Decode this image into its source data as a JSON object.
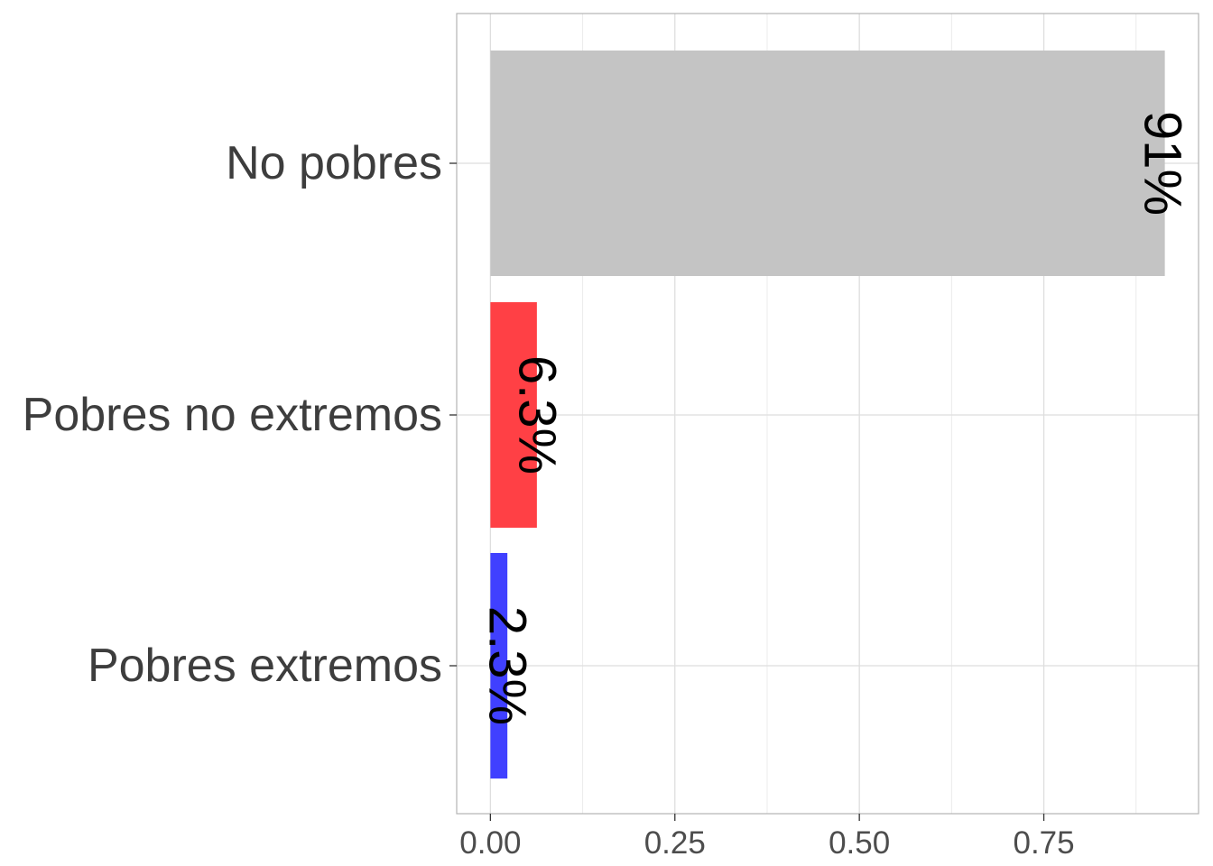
{
  "chart_data": {
    "type": "bar",
    "orientation": "horizontal",
    "categories": [
      "No pobres",
      "Pobres no extremos",
      "Pobres extremos"
    ],
    "values": [
      0.914,
      0.063,
      0.023
    ],
    "value_labels": [
      "91%",
      "6.3%",
      "2.3%"
    ],
    "colors": [
      "#c4c4c4",
      "#ff4045",
      "#4040ff"
    ],
    "xlim": [
      -0.0457,
      0.9597
    ],
    "xticks": [
      0.0,
      0.25,
      0.5,
      0.75
    ],
    "xtick_labels": [
      "0.00",
      "0.25",
      "0.50",
      "0.75"
    ],
    "title": "",
    "xlabel": "",
    "ylabel": "",
    "grid": true,
    "legend": "none"
  }
}
